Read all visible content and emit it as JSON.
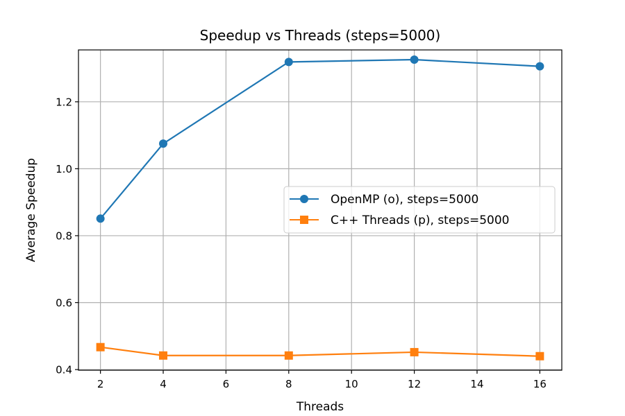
{
  "chart_data": {
    "type": "line",
    "title": "Speedup vs Threads (steps=5000)",
    "xlabel": "Threads",
    "ylabel": "Average Speedup",
    "xlim": [
      1.3,
      16.7
    ],
    "ylim": [
      0.398,
      1.355
    ],
    "x_ticks": [
      2,
      4,
      6,
      8,
      10,
      12,
      14,
      16
    ],
    "y_ticks": [
      0.4,
      0.6,
      0.8,
      1.0,
      1.2
    ],
    "y_tick_labels": [
      "0.4",
      "0.6",
      "0.8",
      "1.0",
      "1.2"
    ],
    "grid": true,
    "legend_position": "center-right",
    "series": [
      {
        "name": "OpenMP (o), steps=5000",
        "color": "#1f77b4",
        "marker": "circle",
        "x": [
          2,
          4,
          8,
          12,
          16
        ],
        "y": [
          0.851,
          1.075,
          1.319,
          1.326,
          1.306
        ]
      },
      {
        "name": "C++ Threads (p), steps=5000",
        "color": "#ff7f0e",
        "marker": "square",
        "x": [
          2,
          4,
          8,
          12,
          16
        ],
        "y": [
          0.467,
          0.442,
          0.442,
          0.452,
          0.44
        ]
      }
    ]
  }
}
